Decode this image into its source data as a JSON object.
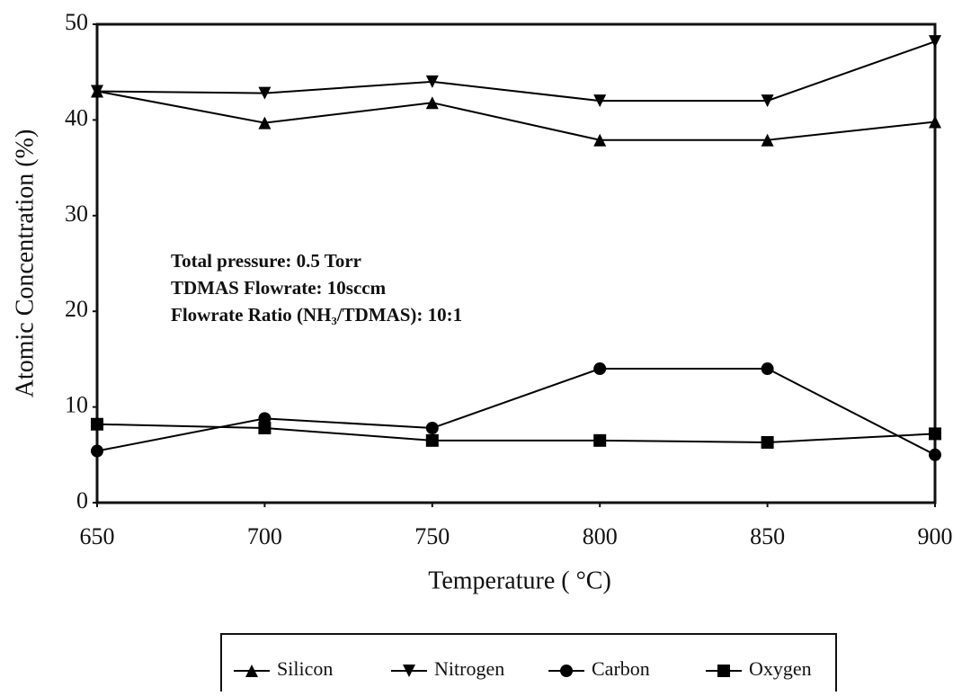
{
  "chart_data": {
    "type": "line",
    "xlabel": "Temperature ( °C)",
    "ylabel": "Atomic Concentration (%)",
    "annotations": [
      "Total pressure: 0.5 Torr",
      "TDMAS Flowrate: 10sccm",
      "Flowrate Ratio (NH₃/TDMAS): 10:1"
    ],
    "x": [
      650,
      700,
      750,
      800,
      850,
      900
    ],
    "xlim": [
      650,
      900
    ],
    "xticks": [
      650,
      700,
      750,
      800,
      850,
      900
    ],
    "ylim": [
      0,
      50
    ],
    "yticks": [
      0,
      10,
      20,
      30,
      40,
      50
    ],
    "series": [
      {
        "name": "Silicon",
        "color": "#000000",
        "marker": "triangle-up",
        "values": [
          43,
          39.7,
          41.8,
          37.9,
          37.9,
          39.8
        ]
      },
      {
        "name": "Nitrogen",
        "color": "#000000",
        "marker": "triangle-down",
        "values": [
          43,
          42.8,
          44,
          42,
          42,
          48.2
        ]
      },
      {
        "name": "Carbon",
        "color": "#000000",
        "marker": "circle",
        "values": [
          5.4,
          8.8,
          7.8,
          14,
          14,
          5
        ]
      },
      {
        "name": "Oxygen",
        "color": "#000000",
        "marker": "square",
        "values": [
          8.2,
          7.8,
          6.5,
          6.5,
          6.3,
          7.2
        ]
      }
    ],
    "legend": "bottom"
  }
}
